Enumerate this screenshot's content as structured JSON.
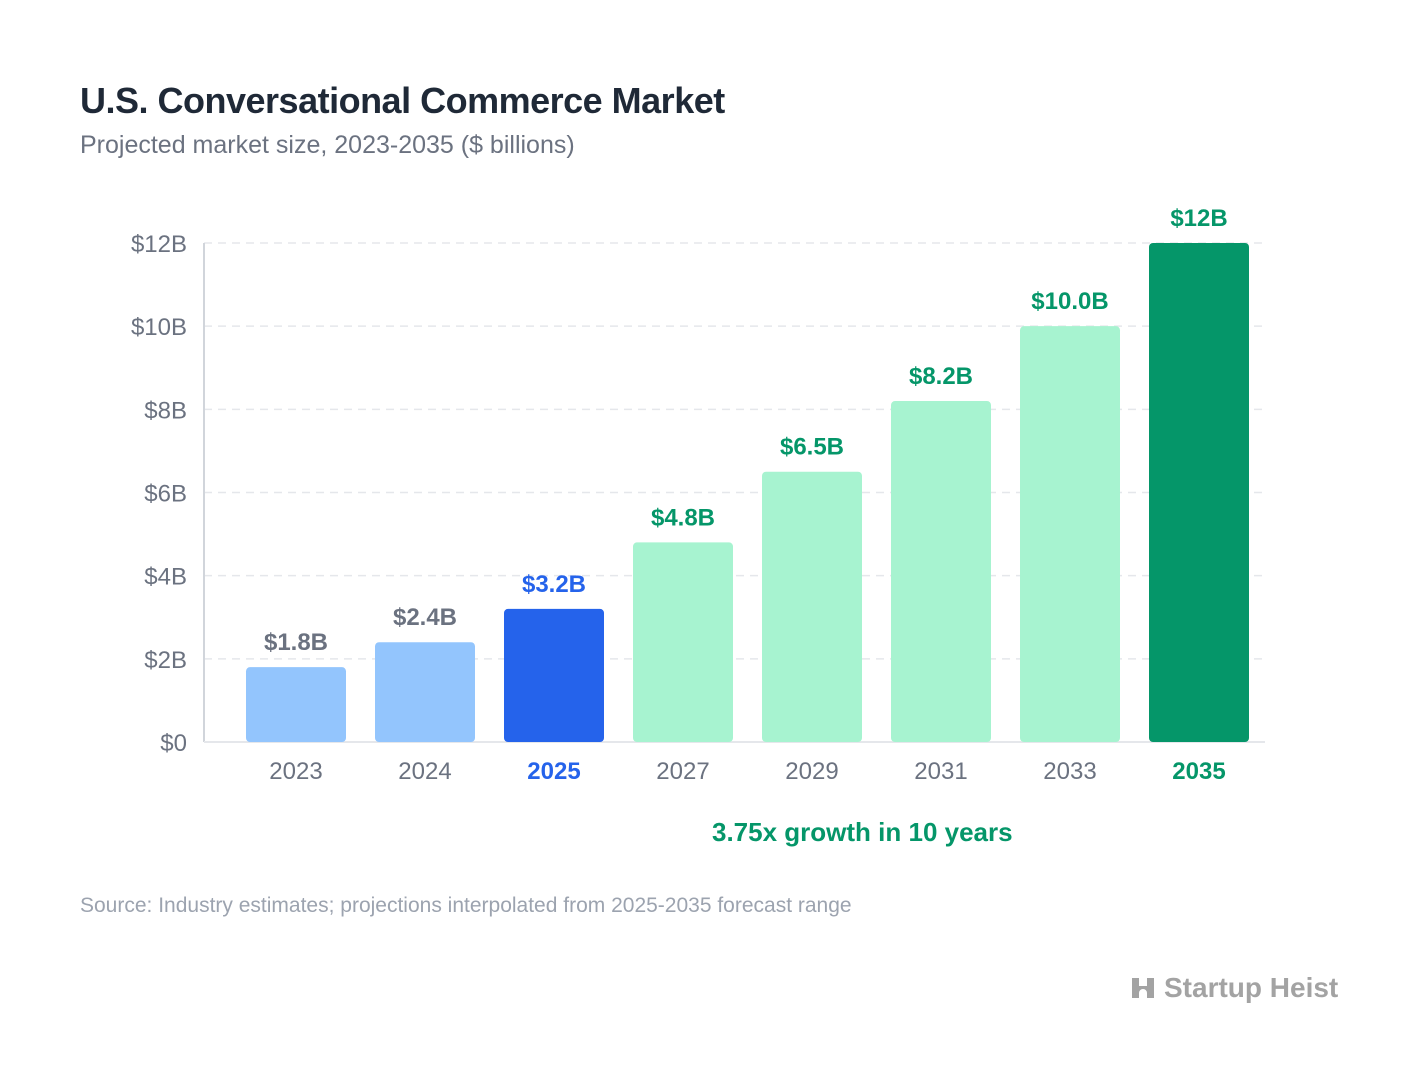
{
  "chart_data": {
    "type": "bar",
    "title": "U.S. Conversational Commerce Market",
    "subtitle": "Projected market size, 2023-2035 ($ billions)",
    "categories": [
      "2023",
      "2024",
      "2025",
      "2027",
      "2029",
      "2031",
      "2033",
      "2035"
    ],
    "values": [
      1.8,
      2.4,
      3.2,
      4.8,
      6.5,
      8.2,
      10.0,
      12
    ],
    "data_labels": [
      "$1.8B",
      "$2.4B",
      "$3.2B",
      "$4.8B",
      "$6.5B",
      "$8.2B",
      "$10.0B",
      "$12B"
    ],
    "bar_colors": [
      "#93c5fd",
      "#93c5fd",
      "#2563eb",
      "#a7f3d0",
      "#a7f3d0",
      "#a7f3d0",
      "#a7f3d0",
      "#059669"
    ],
    "label_colors": [
      "#6b7280",
      "#6b7280",
      "#2563eb",
      "#059669",
      "#059669",
      "#059669",
      "#059669",
      "#059669"
    ],
    "tick_colors": [
      "#6b7280",
      "#6b7280",
      "#2563eb",
      "#6b7280",
      "#6b7280",
      "#6b7280",
      "#6b7280",
      "#059669"
    ],
    "ylim": [
      0,
      12
    ],
    "yticks": [
      0,
      2,
      4,
      6,
      8,
      10,
      12
    ],
    "ytick_labels": [
      "$0",
      "$2B",
      "$4B",
      "$6B",
      "$8B",
      "$10B",
      "$12B"
    ],
    "grid": true,
    "annotation": "3.75x growth in 10 years",
    "source": "Source: Industry estimates; projections interpolated from 2025-2035 forecast range"
  },
  "brand": {
    "name": "Startup Heist",
    "color": "#a3a3a3"
  }
}
